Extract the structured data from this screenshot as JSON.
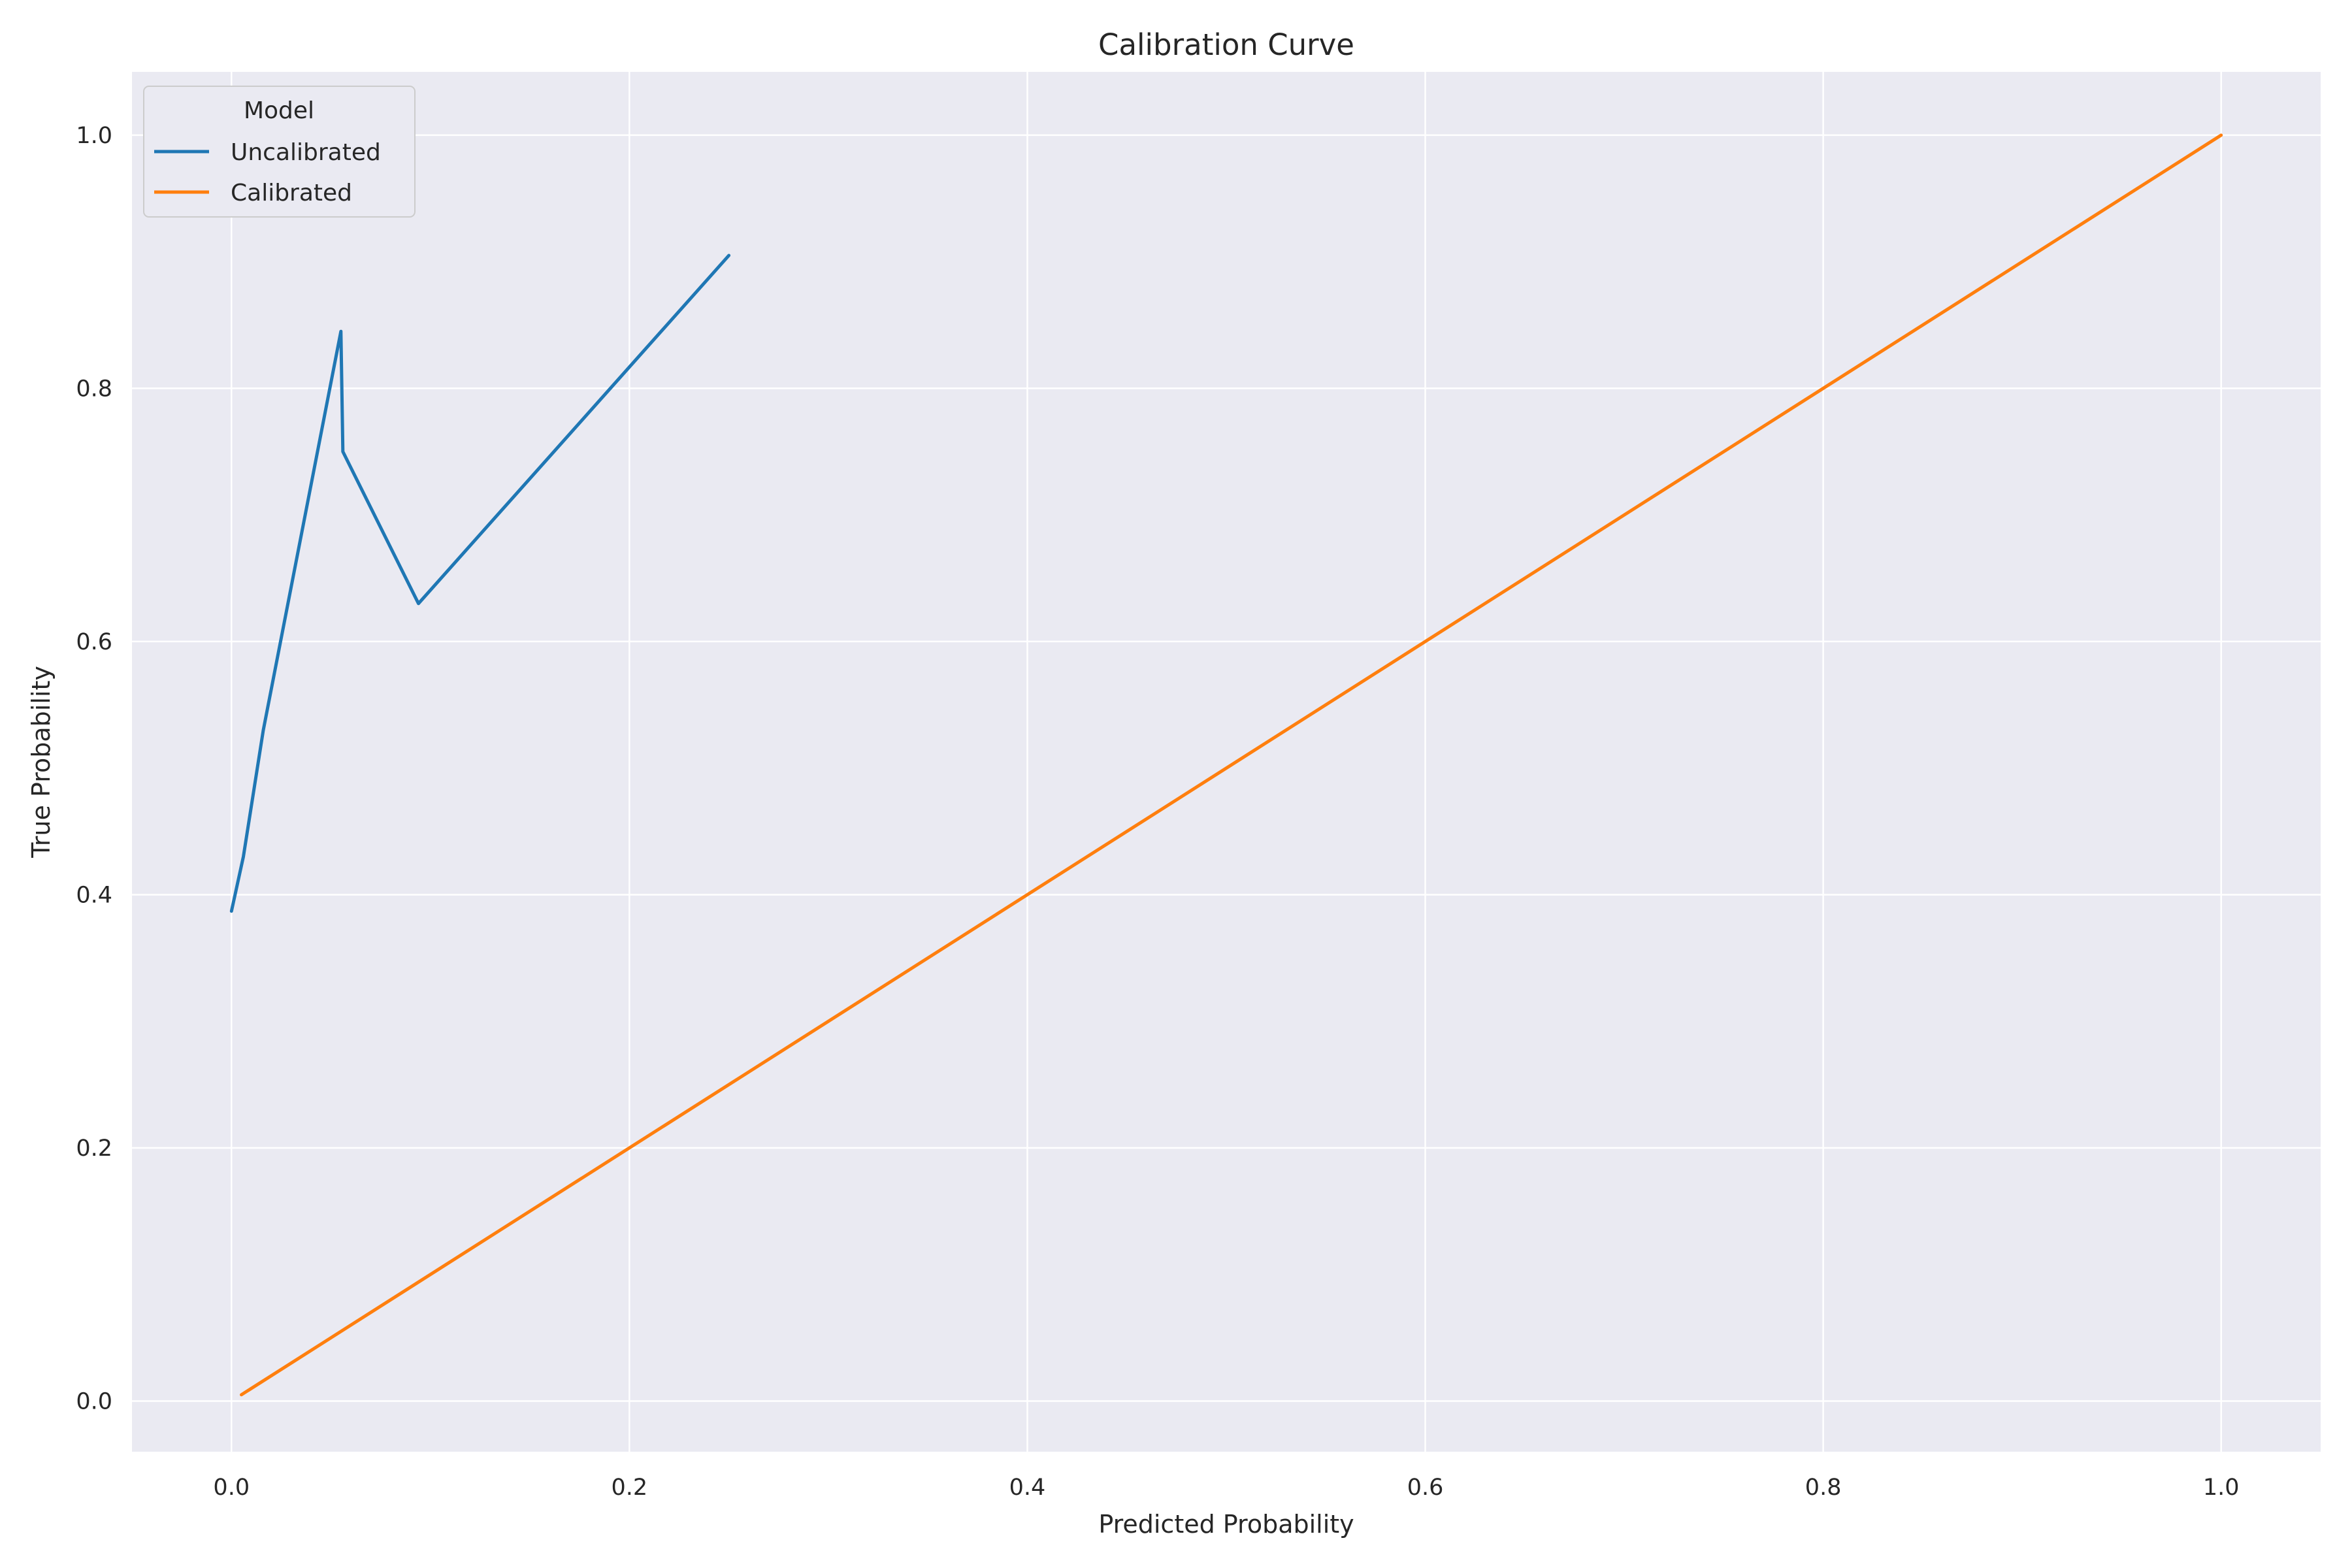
{
  "chart_data": {
    "type": "line",
    "title": "Calibration Curve",
    "xlabel": "Predicted Probability",
    "ylabel": "True Probability",
    "xlim": [
      -0.05,
      1.05
    ],
    "ylim": [
      -0.04,
      1.05
    ],
    "xticks": [
      0.0,
      0.2,
      0.4,
      0.6,
      0.8,
      1.0
    ],
    "xtick_labels": [
      "0.0",
      "0.2",
      "0.4",
      "0.6",
      "0.8",
      "1.0"
    ],
    "yticks": [
      0.0,
      0.2,
      0.4,
      0.6,
      0.8,
      1.0
    ],
    "ytick_labels": [
      "0.0",
      "0.2",
      "0.4",
      "0.6",
      "0.8",
      "1.0"
    ],
    "grid": true,
    "background": "#eaeaf2",
    "grid_color": "#ffffff",
    "legend": {
      "title": "Model",
      "position": "top-left"
    },
    "series": [
      {
        "name": "Uncalibrated",
        "color": "#1f77b4",
        "x": [
          0.0,
          0.006,
          0.016,
          0.055,
          0.056,
          0.094,
          0.25
        ],
        "y": [
          0.387,
          0.43,
          0.53,
          0.845,
          0.75,
          0.63,
          0.905
        ]
      },
      {
        "name": "Calibrated",
        "color": "#ff7f0e",
        "x": [
          0.005,
          1.0
        ],
        "y": [
          0.005,
          1.0
        ]
      }
    ]
  }
}
